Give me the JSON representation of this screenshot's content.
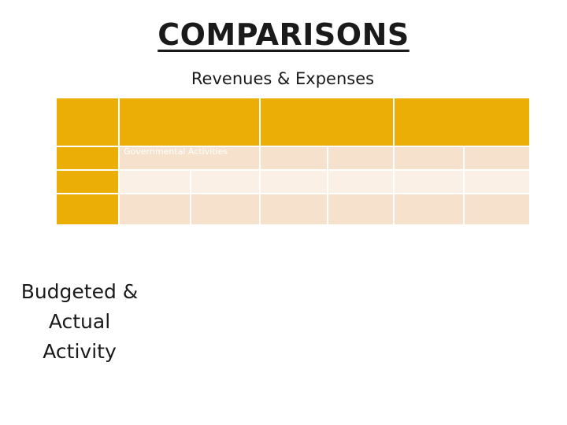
{
  "slide": {
    "title": "COMPARISONS",
    "subtitle": "Revenues & Expenses",
    "table": {
      "row_label": "Governmental Activities"
    },
    "side_text": {
      "line1": "Budgeted &",
      "line2": "Actual",
      "line3": "Activity"
    }
  }
}
